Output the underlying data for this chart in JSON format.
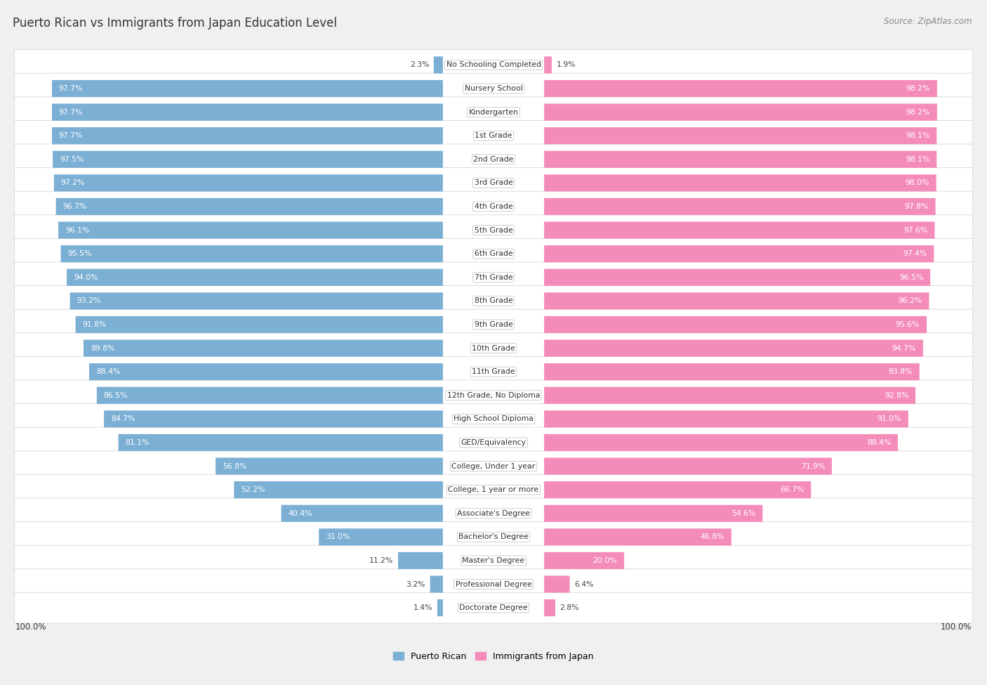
{
  "title": "Puerto Rican vs Immigrants from Japan Education Level",
  "source": "Source: ZipAtlas.com",
  "categories": [
    "No Schooling Completed",
    "Nursery School",
    "Kindergarten",
    "1st Grade",
    "2nd Grade",
    "3rd Grade",
    "4th Grade",
    "5th Grade",
    "6th Grade",
    "7th Grade",
    "8th Grade",
    "9th Grade",
    "10th Grade",
    "11th Grade",
    "12th Grade, No Diploma",
    "High School Diploma",
    "GED/Equivalency",
    "College, Under 1 year",
    "College, 1 year or more",
    "Associate's Degree",
    "Bachelor's Degree",
    "Master's Degree",
    "Professional Degree",
    "Doctorate Degree"
  ],
  "puerto_rican": [
    2.3,
    97.7,
    97.7,
    97.7,
    97.5,
    97.2,
    96.7,
    96.1,
    95.5,
    94.0,
    93.2,
    91.8,
    89.8,
    88.4,
    86.5,
    84.7,
    81.1,
    56.8,
    52.2,
    40.4,
    31.0,
    11.2,
    3.2,
    1.4
  ],
  "japan": [
    1.9,
    98.2,
    98.2,
    98.1,
    98.1,
    98.0,
    97.8,
    97.6,
    97.4,
    96.5,
    96.2,
    95.6,
    94.7,
    93.8,
    92.8,
    91.0,
    88.4,
    71.9,
    66.7,
    54.6,
    46.8,
    20.0,
    6.4,
    2.8
  ],
  "puerto_rican_color": "#7bafd4",
  "japan_color": "#f48cba",
  "background_color": "#f0f0f0",
  "row_bg_color": "#ffffff",
  "row_border_color": "#d8d8d8",
  "max_value": 100.0,
  "label_threshold": 15.0
}
